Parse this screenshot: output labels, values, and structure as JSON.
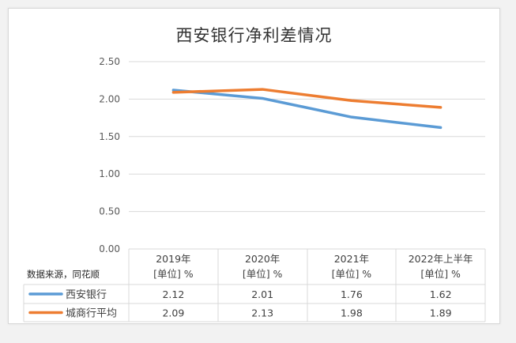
{
  "chart_data": {
    "type": "line",
    "title": "西安银行净利差情况",
    "categories": [
      "2019年",
      "2020年",
      "2021年",
      "2022年上半年"
    ],
    "category_units": [
      "[单位] %",
      "[单位] %",
      "[单位] %",
      "[单位] %"
    ],
    "series": [
      {
        "name": "西安银行",
        "values": [
          2.12,
          2.01,
          1.76,
          1.62
        ],
        "color": "#5b9bd5"
      },
      {
        "name": "城商行平均",
        "values": [
          2.09,
          2.13,
          1.98,
          1.89
        ],
        "color": "#ed7d31"
      }
    ],
    "value_labels": [
      [
        "2.12",
        "2.01",
        "1.76",
        "1.62"
      ],
      [
        "2.09",
        "2.13",
        "1.98",
        "1.89"
      ]
    ],
    "y_ticks": [
      "0.00",
      "0.50",
      "1.00",
      "1.50",
      "2.00",
      "2.50"
    ],
    "ylim": [
      0,
      2.5
    ],
    "grid": true,
    "legend": "data-table",
    "source_note": "数据来源，同花顺"
  }
}
